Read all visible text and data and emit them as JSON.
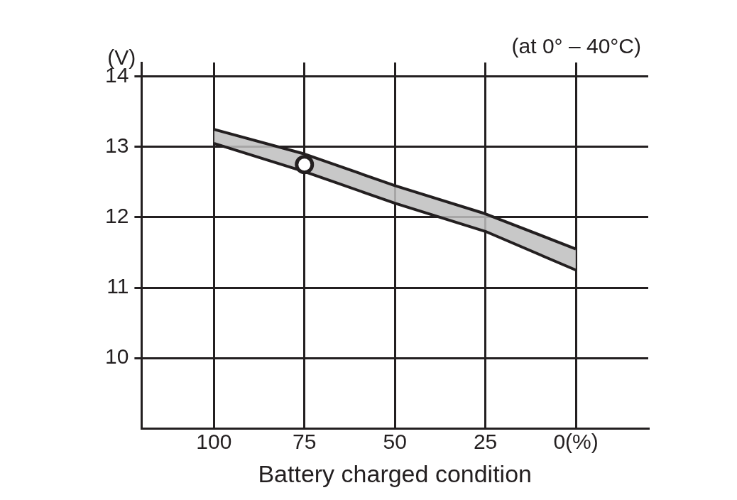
{
  "chart_data": {
    "type": "line",
    "xlabel": "Battery charged condition",
    "ylabel": "(V)",
    "annotations": [
      "(at 0° – 40°C)"
    ],
    "x": [
      100,
      75,
      50,
      25,
      0
    ],
    "series": [
      {
        "color": "#231f20",
        "values": [
          13.25,
          12.9,
          12.45,
          12.05,
          11.55
        ],
        "lower": [
          13.05,
          12.65,
          12.2,
          11.8,
          11.25
        ],
        "upper": [
          13.25,
          12.9,
          12.45,
          12.05,
          11.55
        ]
      },
      {
        "color": "#231f20",
        "values": [
          13.05,
          12.65,
          12.2,
          11.8,
          11.25
        ]
      },
      {
        "type": "scatter",
        "color": "#231f20",
        "x": [
          75
        ],
        "values": [
          12.75
        ],
        "marker": "circle"
      }
    ],
    "xlim": [
      120,
      -20
    ],
    "xticks": [
      100,
      75,
      50,
      25,
      {
        "value": 0,
        "label": "0(%)"
      }
    ],
    "ylim": [
      9,
      14.2
    ],
    "yticks": [
      10,
      11,
      12,
      13,
      14
    ],
    "grid": true,
    "legend": false,
    "line_style": "solid"
  }
}
